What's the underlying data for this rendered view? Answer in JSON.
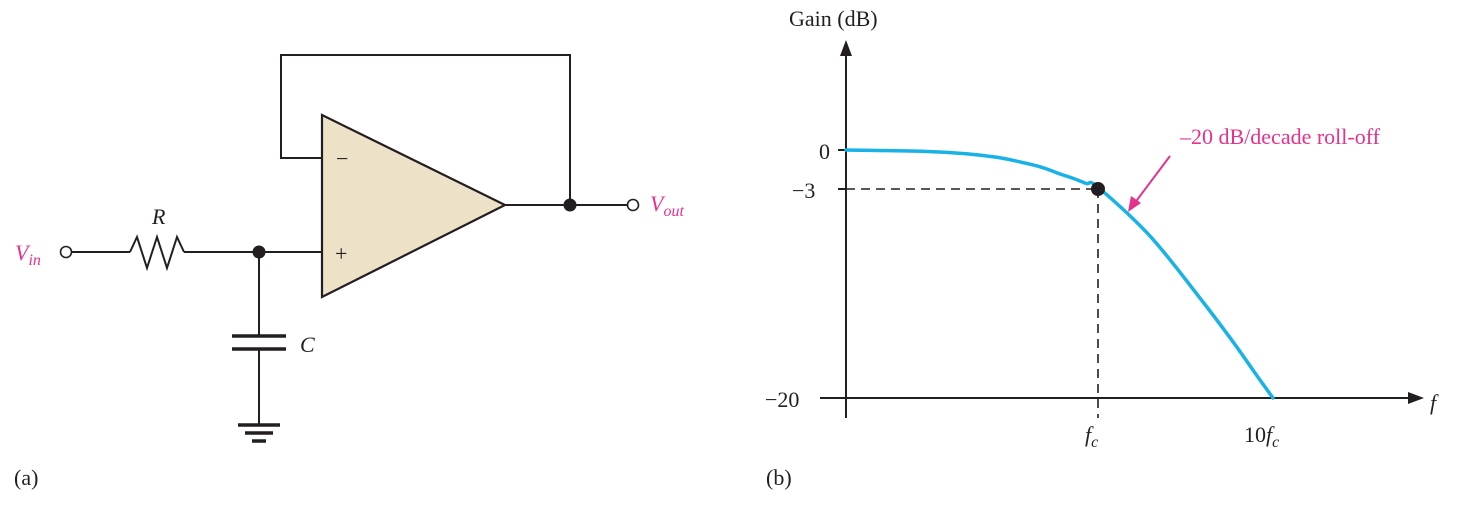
{
  "colors": {
    "wire": "#231f20",
    "opamp_fill": "#ede2c8",
    "accent": "#e8318a",
    "curve": "#18b2e6"
  },
  "circuit": {
    "panel_label": "(a)",
    "vin_label": "V",
    "vin_sub": "in",
    "vout_label": "V",
    "vout_sub": "out",
    "r_label": "R",
    "c_label": "C",
    "minus_sign": "−",
    "plus_sign": "+"
  },
  "plot": {
    "panel_label": "(b)",
    "ylabel": "Gain (dB)",
    "xlabel": "f",
    "ytick_labels": [
      "0",
      "−3",
      "−20"
    ],
    "xtick_fc_main": "f",
    "xtick_fc_sub": "c",
    "xtick_10fc_coef": "10",
    "xtick_10fc_main": "f",
    "xtick_10fc_sub": "c",
    "annotation": "–20 dB/decade roll-off"
  },
  "chart_data": {
    "type": "line",
    "title": "",
    "xlabel": "f",
    "ylabel": "Gain (dB)",
    "x_ticks": [
      "fc",
      "10fc"
    ],
    "y_ticks": [
      0,
      -3,
      -20
    ],
    "series": [
      {
        "x_in_fc_units": [
          0.1,
          0.2,
          0.3,
          0.4,
          0.5,
          0.6,
          0.7,
          0.8,
          0.9,
          1.0,
          2.0,
          4.0,
          6.0,
          8.0,
          10.0
        ],
        "values": [
          0,
          -0.1,
          -0.3,
          -0.6,
          -1.0,
          -1.4,
          -1.9,
          -2.3,
          -2.7,
          -3,
          -7,
          -12.3,
          -15.6,
          -18.1,
          -20
        ]
      }
    ],
    "markers": [
      {
        "x": "fc",
        "y": -3
      }
    ],
    "annotations": [
      "–20 dB/decade roll-off"
    ]
  }
}
